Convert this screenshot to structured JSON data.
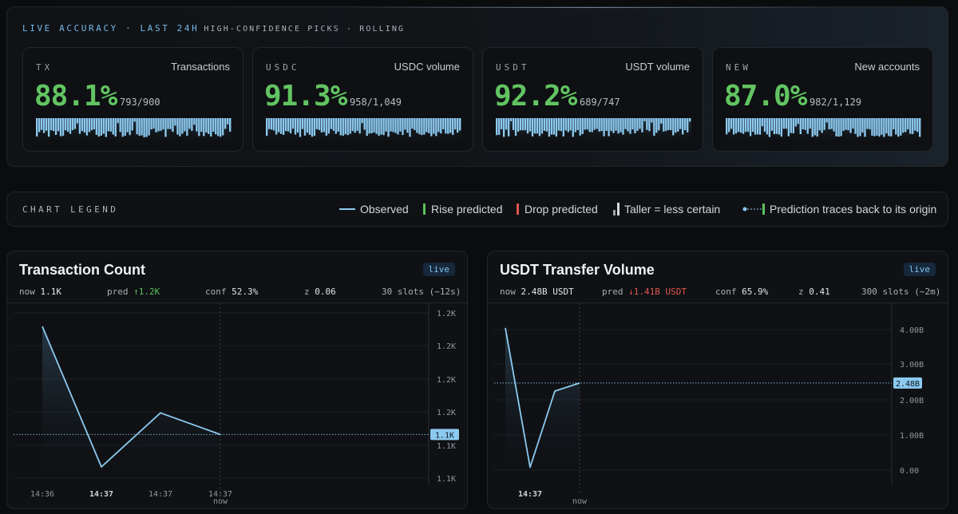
{
  "accuracy": {
    "title": "LIVE ACCURACY · LAST 24H",
    "subtitle": "HIGH-CONFIDENCE PICKS · ROLLING",
    "cards": [
      {
        "code": "TX",
        "name": "Transactions",
        "pct": "88.1%",
        "ratio": "793/900",
        "bar_level": 0.88
      },
      {
        "code": "USDC",
        "name": "USDC volume",
        "pct": "91.3%",
        "ratio": "958/1,049",
        "bar_level": 0.91
      },
      {
        "code": "USDT",
        "name": "USDT volume",
        "pct": "92.2%",
        "ratio": "689/747",
        "bar_level": 0.92
      },
      {
        "code": "NEW",
        "name": "New accounts",
        "pct": "87.0%",
        "ratio": "982/1,129",
        "bar_level": 0.87
      }
    ]
  },
  "legend": {
    "title": "CHART LEGEND",
    "items": [
      {
        "icon": "observed-line-icon",
        "label": "Observed"
      },
      {
        "icon": "rise-bar-icon",
        "label": "Rise predicted"
      },
      {
        "icon": "drop-bar-icon",
        "label": "Drop predicted"
      },
      {
        "icon": "uncertainty-bar-icon",
        "label": "Taller = less certain"
      },
      {
        "icon": "prediction-trace-icon",
        "label": "Prediction traces back to its origin"
      }
    ]
  },
  "colors": {
    "accent": "#74b9e8",
    "rise": "#5cc15c",
    "drop": "#e0564e",
    "observed": "#8ccaf0"
  },
  "panels": [
    {
      "title": "Transaction Count",
      "badge": "live",
      "stats": {
        "now_label": "now",
        "now_value": "1.1K",
        "pred_label": "pred",
        "pred_value": "↑1.2K",
        "conf_label": "conf",
        "conf_value": "52.3%",
        "z_label": "z",
        "z_value": "0.06",
        "slots": "30 slots (~12s)"
      },
      "current_badge": "1.1K",
      "now_marker": "now",
      "chart_data": {
        "type": "line",
        "y_ticks": [
          "1.2K",
          "1.2K",
          "1.2K",
          "1.2K",
          "1.1K",
          "1.1K"
        ],
        "x_ticks": [
          "14:36",
          "14:37",
          "14:37",
          "14:37"
        ],
        "series": [
          {
            "values": [
              1.2,
              1.07,
              1.12,
              1.1
            ]
          }
        ]
      }
    },
    {
      "title": "USDT Transfer Volume",
      "badge": "live",
      "stats": {
        "now_label": "now",
        "now_value": "2.48B USDT",
        "pred_label": "pred",
        "pred_value": "↓1.41B USDT",
        "conf_label": "conf",
        "conf_value": "65.9%",
        "z_label": "z",
        "z_value": "0.41",
        "slots": "300 slots (~2m)"
      },
      "current_badge": "2.48B",
      "now_marker": "now",
      "chart_data": {
        "type": "line",
        "y_ticks": [
          "4.00B",
          "3.00B",
          "2.00B",
          "1.00B",
          "0.00"
        ],
        "x_ticks": [
          "14:37"
        ],
        "ylim": [
          0,
          4
        ],
        "series": [
          {
            "values": [
              4.05,
              0.08,
              2.25,
              2.48
            ]
          }
        ]
      }
    }
  ]
}
